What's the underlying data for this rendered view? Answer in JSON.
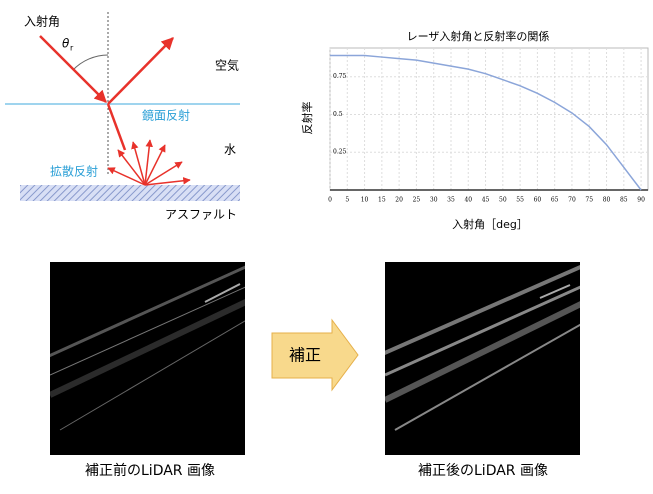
{
  "diagram": {
    "incidence_angle": "入射角",
    "theta": "θ",
    "theta_sub": "r",
    "air": "空気",
    "specular": "鏡面反射",
    "water": "水",
    "diffuse": "拡散反射",
    "asphalt": "アスファルト"
  },
  "chart_data": {
    "type": "line",
    "title": "レーザ入射角と反射率の関係",
    "x_label": "入射角［deg］",
    "y_label": "反射率",
    "x": [
      0,
      5,
      10,
      15,
      20,
      25,
      30,
      35,
      40,
      45,
      50,
      55,
      60,
      65,
      70,
      75,
      80,
      85,
      90
    ],
    "series": [
      {
        "color": "#8ba5d9",
        "values": [
          0.89,
          0.89,
          0.89,
          0.88,
          0.87,
          0.86,
          0.84,
          0.82,
          0.8,
          0.77,
          0.73,
          0.69,
          0.64,
          0.58,
          0.51,
          0.42,
          0.3,
          0.15,
          0.0
        ]
      }
    ],
    "xlim": [
      0,
      92
    ],
    "ylim": [
      0,
      0.94
    ],
    "xticks": [
      0,
      5,
      10,
      15,
      20,
      25,
      30,
      35,
      40,
      45,
      50,
      55,
      60,
      65,
      70,
      75,
      80,
      85,
      90
    ],
    "yticks": [
      0.25,
      0.5,
      0.75
    ],
    "grid": true
  },
  "comparison": {
    "arrow_label": "補正",
    "before_caption": "補正前のLiDAR 画像",
    "after_caption": "補正後のLiDAR 画像"
  }
}
